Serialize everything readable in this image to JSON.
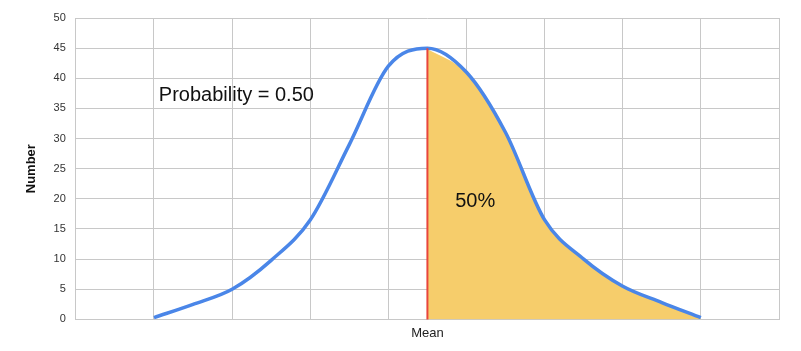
{
  "chart_data": {
    "type": "line",
    "categories": [
      null,
      null,
      null,
      null,
      null,
      null,
      null,
      null,
      null,
      "Mean",
      null,
      null,
      null,
      null,
      null,
      null,
      null,
      null,
      null
    ],
    "values": [
      null,
      null,
      0.3,
      2.5,
      5,
      9.8,
      16.5,
      29,
      42,
      45,
      41,
      31,
      16.5,
      10,
      5.5,
      2.8,
      0.3,
      null,
      null
    ],
    "color": "#4a86e8",
    "ylim": [
      0,
      50
    ],
    "yticks": [
      0,
      5,
      10,
      15,
      20,
      25,
      30,
      35,
      40,
      45,
      50
    ],
    "y_label": "Number",
    "grid": true,
    "annotations": [
      "Probability = 0.50"
    ],
    "shaded_region": {
      "from": "Mean",
      "color": "#f6cd6b",
      "label": "50%"
    },
    "mean_line": {
      "at": "Mean",
      "color": "#e8453c"
    }
  }
}
